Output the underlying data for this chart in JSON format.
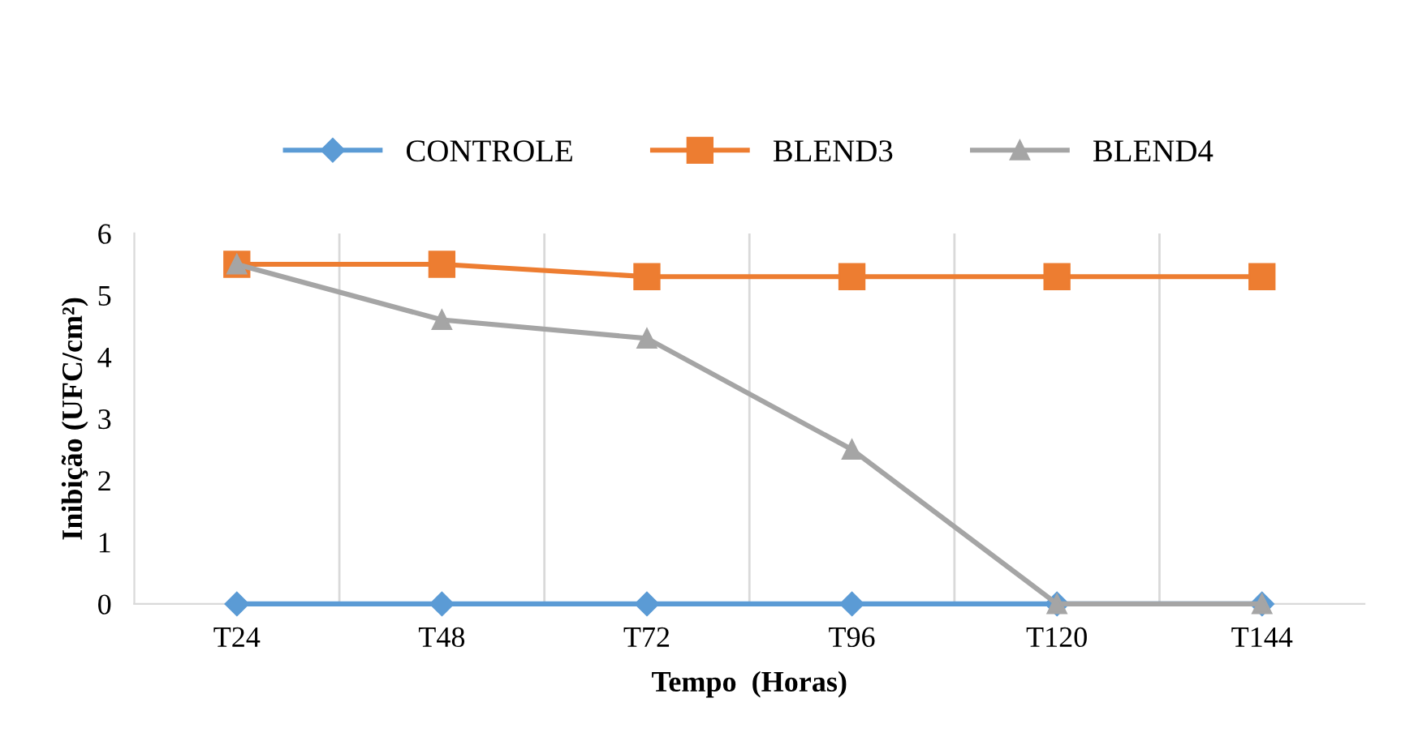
{
  "chart_data": {
    "type": "line",
    "xlabel": "Tempo  (Horas)",
    "ylabel": "Inibição (UFC/cm²)",
    "categories": [
      "T24",
      "T48",
      "T72",
      "T96",
      "T120",
      "T144"
    ],
    "series": [
      {
        "name": "CONTROLE",
        "color": "#5b9bd5",
        "marker": "diamond",
        "values": [
          0,
          0,
          0,
          0,
          0,
          0
        ]
      },
      {
        "name": "BLEND3",
        "color": "#ed7d31",
        "marker": "square",
        "values": [
          5.5,
          5.5,
          5.3,
          5.3,
          5.3,
          5.3
        ]
      },
      {
        "name": "BLEND4",
        "color": "#a5a5a5",
        "marker": "triangle",
        "values": [
          5.5,
          4.6,
          4.3,
          2.5,
          0,
          0
        ]
      }
    ],
    "ylim": [
      0,
      6
    ],
    "yticks": [
      0,
      1,
      2,
      3,
      4,
      5,
      6
    ],
    "grid": "x",
    "legend": "top",
    "line_style": "solid"
  }
}
